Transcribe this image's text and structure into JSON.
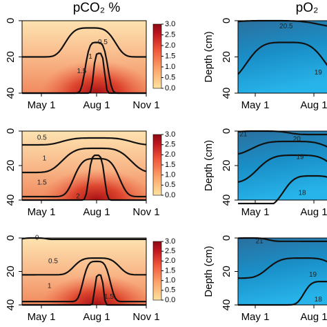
{
  "chart_data": [
    {
      "type": "contour",
      "title": "pCO₂  %",
      "x_ticks": [
        "May 1",
        "Aug 1",
        "Nov 1"
      ],
      "ylim": [
        0,
        40
      ],
      "yticks": [
        0,
        20,
        40
      ],
      "y_inverted": true,
      "palette": "reds",
      "colorbar_ticks": [
        {
          "value": 0,
          "label": "0.0"
        },
        {
          "value": 0.5,
          "label": "0.5"
        },
        {
          "value": 1,
          "label": "1.0"
        },
        {
          "value": 1.5,
          "label": "1.5"
        },
        {
          "value": 2,
          "label": "2.0"
        },
        {
          "value": 2.5,
          "label": "2.5"
        },
        {
          "value": 3,
          "label": "3.0"
        }
      ],
      "colorbar_lim": [
        0,
        3
      ],
      "contour_labels": [
        "0.5",
        "1",
        "1.5"
      ]
    },
    {
      "type": "contour",
      "title": "pO₂",
      "y_label": "Depth (cm)",
      "x_ticks": [
        "May 1",
        "Aug 1"
      ],
      "ylim": [
        0,
        40
      ],
      "yticks": [
        0,
        20,
        40
      ],
      "y_inverted": true,
      "palette": "blues",
      "contour_labels": [
        "20.5",
        "19"
      ]
    },
    {
      "type": "contour",
      "x_ticks": [
        "May 1",
        "Aug 1",
        "Nov 1"
      ],
      "ylim": [
        0,
        40
      ],
      "yticks": [
        0,
        20,
        40
      ],
      "y_inverted": true,
      "palette": "reds",
      "colorbar_ticks": [
        {
          "value": 0,
          "label": "0.0"
        },
        {
          "value": 0.5,
          "label": "0.5"
        },
        {
          "value": 1,
          "label": "1.0"
        },
        {
          "value": 1.5,
          "label": "1.5"
        },
        {
          "value": 2,
          "label": "2.0"
        },
        {
          "value": 2.5,
          "label": "2.5"
        },
        {
          "value": 3,
          "label": "3.0"
        }
      ],
      "colorbar_lim": [
        0,
        3
      ],
      "contour_labels": [
        "0.5",
        "1",
        "1.5",
        "2"
      ]
    },
    {
      "type": "contour",
      "y_label": "Depth (cm)",
      "x_ticks": [
        "May 1",
        "Aug 1"
      ],
      "ylim": [
        0,
        40
      ],
      "yticks": [
        0,
        20,
        40
      ],
      "y_inverted": true,
      "palette": "blues",
      "contour_labels": [
        "21",
        "20",
        "19",
        "18"
      ]
    },
    {
      "type": "contour",
      "x_ticks": [
        "May 1",
        "Aug 1",
        "Nov 1"
      ],
      "ylim": [
        0,
        40
      ],
      "yticks": [
        0,
        20,
        40
      ],
      "y_inverted": true,
      "palette": "reds",
      "colorbar_ticks": [
        {
          "value": 0,
          "label": "0.0"
        },
        {
          "value": 0.5,
          "label": "0.5"
        },
        {
          "value": 1,
          "label": "1.0"
        },
        {
          "value": 1.5,
          "label": "1.5"
        },
        {
          "value": 2,
          "label": "2.0"
        },
        {
          "value": 2.5,
          "label": "2.5"
        },
        {
          "value": 3,
          "label": "3.0"
        }
      ],
      "colorbar_lim": [
        0,
        3
      ],
      "contour_labels": [
        "0",
        "0.5",
        "1",
        "1.5"
      ]
    },
    {
      "type": "contour",
      "y_label": "Depth (cm)",
      "x_ticks": [
        "May 1",
        "Aug 1"
      ],
      "ylim": [
        0,
        40
      ],
      "yticks": [
        0,
        20,
        40
      ],
      "y_inverted": true,
      "palette": "blues",
      "contour_labels": [
        "21",
        "19",
        "18"
      ]
    }
  ]
}
